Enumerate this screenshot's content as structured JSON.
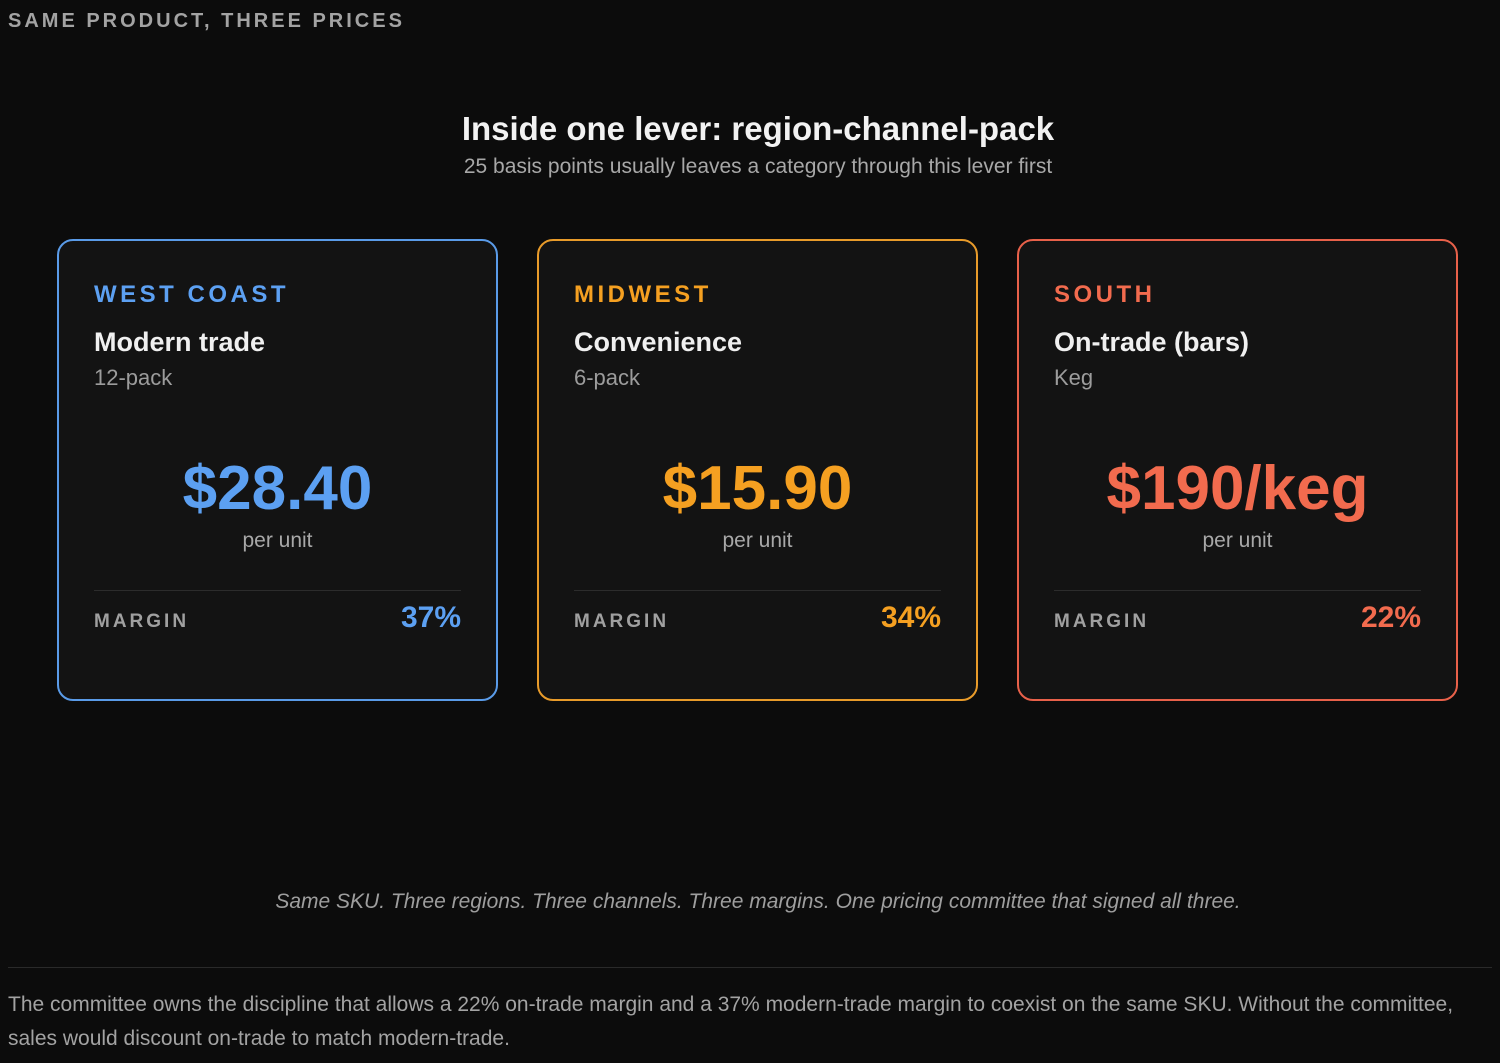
{
  "eyebrow": "SAME PRODUCT, THREE PRICES",
  "title": "Inside one lever: region-channel-pack",
  "subtitle": "25 basis points usually leaves a category through this lever first",
  "cards": [
    {
      "region": "WEST COAST",
      "channel": "Modern trade",
      "pack": "12-pack",
      "price": "$28.40",
      "unit": "per unit",
      "margin_label": "MARGIN",
      "margin": "37%",
      "color": "#5ca0f2"
    },
    {
      "region": "MIDWEST",
      "channel": "Convenience",
      "pack": "6-pack",
      "price": "$15.90",
      "unit": "per unit",
      "margin_label": "MARGIN",
      "margin": "34%",
      "color": "#f5a021"
    },
    {
      "region": "SOUTH",
      "channel": "On-trade (bars)",
      "pack": "Keg",
      "price": "$190/keg",
      "unit": "per unit",
      "margin_label": "MARGIN",
      "margin": "22%",
      "color": "#f26b4e"
    }
  ],
  "caption": "Same SKU. Three regions. Three channels. Three margins. One pricing committee that signed all three.",
  "note": "The committee owns the discipline that allows a 22% on-trade margin and a 37% modern-trade margin to coexist on the same SKU. Without the committee, sales would discount on-trade to match modern-trade."
}
